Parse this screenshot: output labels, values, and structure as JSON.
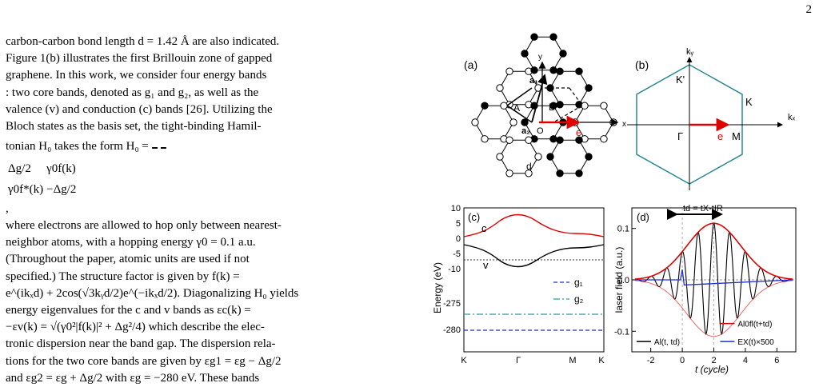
{
  "page_number": "2",
  "text": {
    "lines": [
      "carbon-carbon bond length d = 1.42 Å are also indicated.",
      "Figure 1(b) illustrates the first Brillouin zone of gapped",
      "graphene. In this work, we consider four energy bands",
      ": two core bands, denoted as g₁ and g₂, as well as the",
      "valence (v) and conduction (c) bands [26]. Utilizing the",
      "Bloch states as the basis set, the tight-binding Hamil-"
    ],
    "hamiltonian_prefix": "tonian H₀ takes the form H₀ =",
    "matrix": [
      [
        "Δg/2",
        "γ0f(k)"
      ],
      [
        "γ0f*(k)",
        "−Δg/2"
      ]
    ],
    "hamiltonian_suffix": ",",
    "lines2": [
      "where electrons are allowed to hop only between nearest-",
      "neighbor atoms, with a hopping energy γ0 = 0.1 a.u.",
      "(Throughout the paper, atomic units are used if not",
      "specified.)   The structure factor is given by f(k) =",
      "e^(ikₓd) + 2cos(√3kᵧd/2)e^(−ikₓd/2). Diagonalizing H₀ yields",
      "energy eigenvalues for the c and v bands as εc(k) =",
      "−εv(k) = √(γ0²|f(k)|² + Δg²/4) which describe the elec-",
      "tronic dispersion near the band gap. The dispersion rela-",
      "tions for the two core bands are given by εg1 = εg − Δg/2",
      "and εg2 = εg + Δg/2 with εg = −280 eV. These bands"
    ]
  },
  "figure": {
    "panel_a": {
      "label": "(a)",
      "x_axis": "x",
      "y_axis": "y",
      "atom_labels": [
        "A",
        "B",
        "O"
      ],
      "vector_labels": [
        "a₁",
        "a₂"
      ],
      "bond_label": "d",
      "field_label": "e",
      "field_color": "#e00000"
    },
    "panel_b": {
      "label": "(b)",
      "x_axis": "kₓ",
      "y_axis": "kᵧ",
      "point_labels": [
        "K'",
        "K",
        "Γ",
        "M"
      ],
      "field_label": "e",
      "hex_color": "#2a8a92"
    },
    "panel_c": {
      "label": "(c)",
      "ylabel": "Energy (eV)",
      "upper_ticks": [
        "10",
        "5",
        "0",
        "-5",
        "-10"
      ],
      "lower_ticks": [
        "-275",
        "-280"
      ],
      "x_ticks": [
        "K",
        "Γ",
        "M",
        "K"
      ],
      "band_labels": [
        "c",
        "v"
      ],
      "legend": [
        "g₁",
        "g₂"
      ],
      "colors": {
        "c": "#e00000",
        "v": "#000000",
        "g1": "#1f2fd0",
        "g2": "#2a9aa0"
      }
    },
    "panel_d": {
      "label": "(d)",
      "ylabel": "laser field (a.u.)",
      "xlabel": "t (cycle)",
      "y_ticks": [
        "0.1",
        "0.0",
        "-0.1"
      ],
      "x_ticks": [
        "-2",
        "0",
        "2",
        "4",
        "6"
      ],
      "delay_label": "td = tX-tIR",
      "legend": [
        "Al(t, td)",
        "Al0fl(t+td)",
        "EX(t)×500"
      ],
      "colors": {
        "field": "#000000",
        "envelope": "#e00000",
        "xray": "#1f2fd0"
      }
    }
  },
  "chart_data": {
    "type": "line",
    "title": "",
    "xlabel": "t (cycle)",
    "ylabel": "laser field (a.u.)",
    "xlim": [
      -3.2,
      7.2
    ],
    "ylim": [
      -0.14,
      0.14
    ],
    "series": [
      {
        "name": "Al(t, td)",
        "x": [
          -3,
          -2,
          -1,
          0,
          1,
          2,
          3,
          4,
          5,
          6,
          7
        ],
        "y": [
          0.0,
          -0.03,
          -0.05,
          -0.08,
          -0.1,
          -0.11,
          -0.1,
          -0.08,
          -0.05,
          -0.03,
          0.0
        ]
      },
      {
        "name": "Al0fl(t+td)",
        "x": [
          -3,
          -2,
          -1,
          0,
          1,
          2,
          3,
          4,
          5,
          6,
          7
        ],
        "y": [
          0.0,
          0.03,
          0.05,
          0.08,
          0.1,
          0.11,
          0.1,
          0.08,
          0.05,
          0.03,
          0.0
        ]
      },
      {
        "name": "EX(t)×500",
        "x": [
          -3,
          -0.3,
          0,
          0.3,
          7
        ],
        "y": [
          0.0,
          0.0,
          0.02,
          0.0,
          0.0
        ]
      }
    ]
  }
}
